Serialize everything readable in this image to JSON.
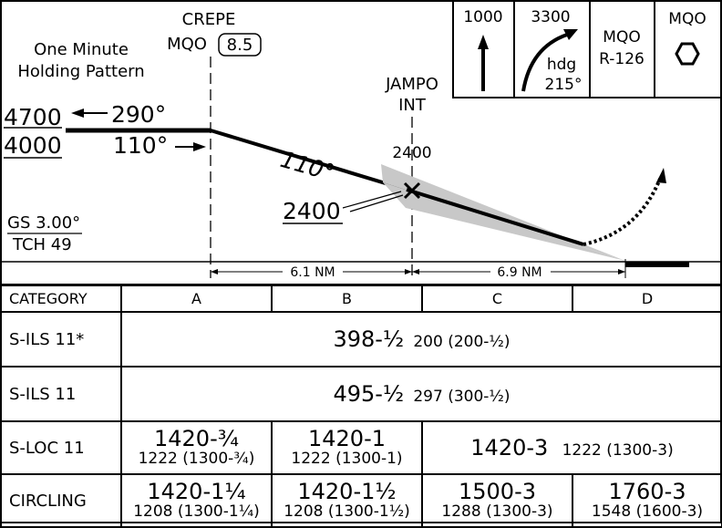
{
  "profile": {
    "holding_pattern_label": [
      "One Minute",
      "Holding Pattern"
    ],
    "crepe_name": "CREPE",
    "crepe_nav": "MQO",
    "crepe_dme": "8.5",
    "jampo_name": "JAMPO",
    "jampo_type": "INT",
    "alt_high": "4700",
    "alt_low": "4000",
    "course_out": "290°",
    "course_in": "110°",
    "course_descent": "110°",
    "alt_jampo": "2400",
    "alt_jampo_underlined": "2400",
    "gs": "GS 3.00°",
    "tch": "TCH 49",
    "dist_1": "6.1 NM",
    "dist_2": "6.9 NM"
  },
  "missed_approach_boxes": {
    "climb_alt": "1000",
    "climb_turn_alt": "3300",
    "turn_hdg_label": "hdg",
    "turn_hdg_value": "215°",
    "radial_nav": "MQO",
    "radial": "R-126",
    "hold_nav": "MQO"
  },
  "minimums": {
    "header": {
      "category": "CATEGORY",
      "a": "A",
      "b": "B",
      "c": "C",
      "d": "D"
    },
    "s_ils_star": {
      "label": "S-ILS 11*",
      "main": "398-½",
      "sub": "200 (200-½)"
    },
    "s_ils": {
      "label": "S-ILS 11",
      "main": "495-½",
      "sub": "297 (300-½)"
    },
    "s_loc": {
      "label": "S-LOC 11",
      "a_main": "1420-¾",
      "a_sub": "1222 (1300-¾)",
      "b_main": "1420-1",
      "b_sub": "1222 (1300-1)",
      "cd_main": "1420-3",
      "cd_sub": "1222 (1300-3)"
    },
    "circling": {
      "label": "CIRCLING",
      "a_main": "1420-1¼",
      "a_sub": "1208 (1300-1¼)",
      "b_main": "1420-1½",
      "b_sub": "1208 (1300-1½)",
      "c_main": "1500-3",
      "c_sub": "1288 (1300-3)",
      "d_main": "1760-3",
      "d_sub": "1548 (1600-3)"
    }
  }
}
